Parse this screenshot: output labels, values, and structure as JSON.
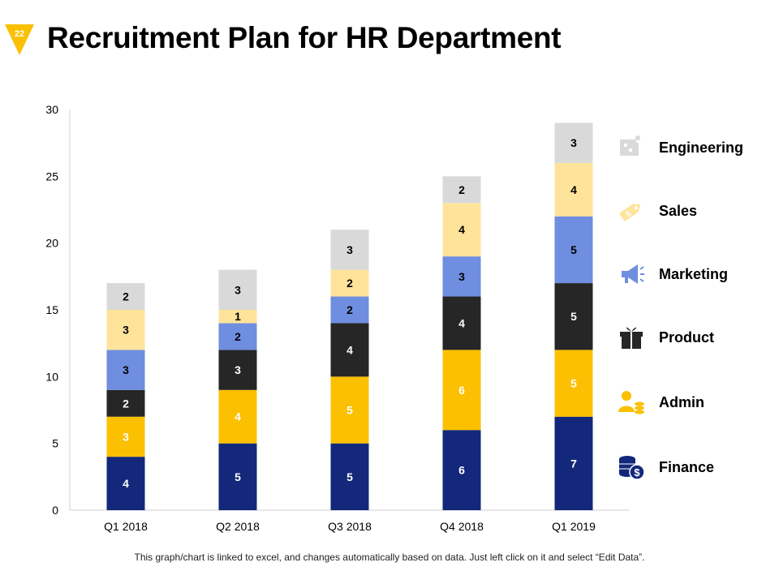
{
  "slide": {
    "number": "22",
    "title": "Recruitment Plan for HR Department",
    "footnote": "This graph/chart is linked to excel, and changes automatically based on data. Just left click on it and select “Edit Data”."
  },
  "colors": {
    "Finance": "#13287a",
    "Admin": "#fbc002",
    "Product": "#262626",
    "Marketing": "#6f8ee0",
    "Sales": "#fee39b",
    "Engineering": "#d9d9d9",
    "badge": "#fbc002"
  },
  "legend": [
    {
      "label": "Engineering",
      "icon": "engineering-icon"
    },
    {
      "label": "Sales",
      "icon": "price-tag-icon"
    },
    {
      "label": "Marketing",
      "icon": "megaphone-icon"
    },
    {
      "label": "Product",
      "icon": "product-box-icon"
    },
    {
      "label": "Admin",
      "icon": "admin-person-icon"
    },
    {
      "label": "Finance",
      "icon": "finance-coins-icon"
    }
  ],
  "chart_data": {
    "type": "bar",
    "stacked": true,
    "categories": [
      "Q1 2018",
      "Q2 2018",
      "Q3 2018",
      "Q4 2018",
      "Q1 2019"
    ],
    "series": [
      {
        "name": "Finance",
        "values": [
          4,
          5,
          5,
          6,
          7
        ]
      },
      {
        "name": "Admin",
        "values": [
          3,
          4,
          5,
          6,
          5
        ]
      },
      {
        "name": "Product",
        "values": [
          2,
          3,
          4,
          4,
          5
        ]
      },
      {
        "name": "Marketing",
        "values": [
          3,
          2,
          2,
          3,
          5
        ]
      },
      {
        "name": "Sales",
        "values": [
          3,
          1,
          2,
          4,
          4
        ]
      },
      {
        "name": "Engineering",
        "values": [
          2,
          3,
          3,
          2,
          3
        ]
      }
    ],
    "ylim": [
      0,
      30
    ],
    "yticks": [
      0,
      5,
      10,
      15,
      20,
      25,
      30
    ],
    "grid": false,
    "legend_position": "right"
  }
}
